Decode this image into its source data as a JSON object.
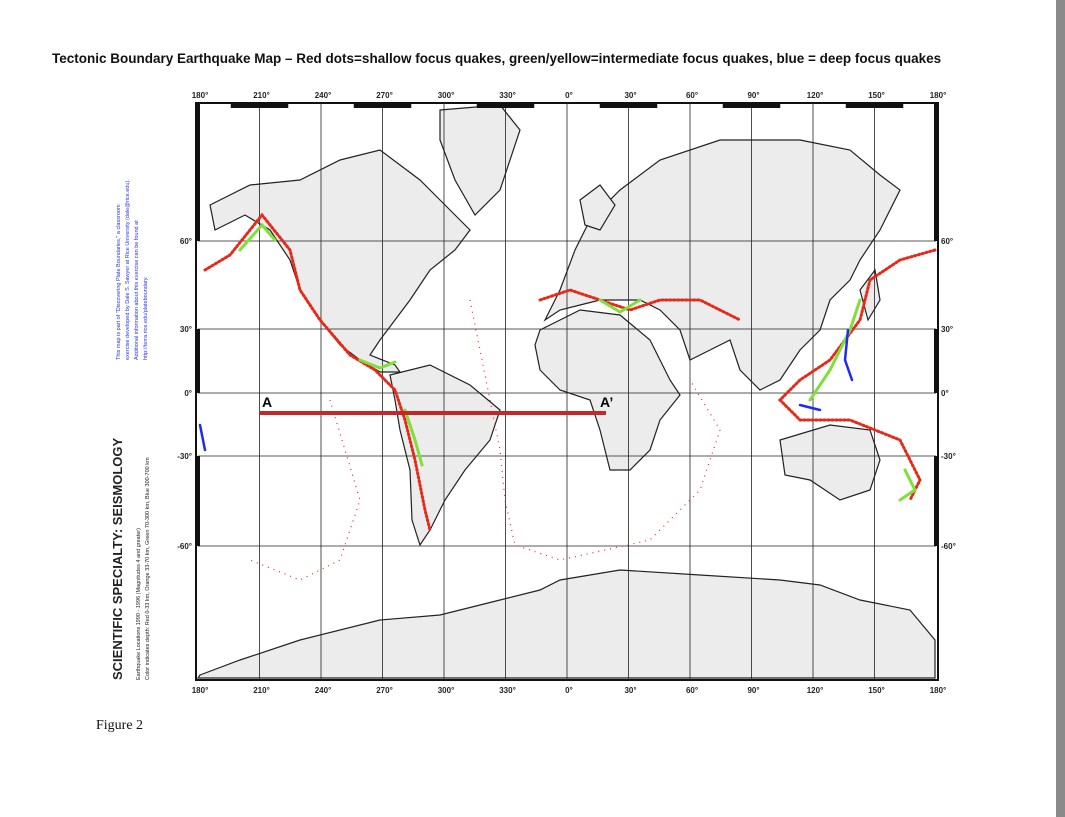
{
  "header": {
    "title": "Tectonic Boundary Earthquake Map – Red dots=shallow focus quakes, green/yellow=intermediate focus quakes, blue = deep focus quakes"
  },
  "map": {
    "longitude_labels": [
      "180°",
      "210°",
      "240°",
      "270°",
      "300°",
      "330°",
      "0°",
      "30°",
      "60°",
      "90°",
      "120°",
      "150°",
      "180°"
    ],
    "latitude_labels": [
      "60°",
      "30°",
      "0°",
      "-30°",
      "-60°"
    ],
    "section_start": "A",
    "section_end": "A’"
  },
  "sidebar": {
    "heading": "SCIENTIFIC SPECIALTY: SEISMOLOGY",
    "data_lines": [
      "Earthquake Locations 1990 - 1996 (Magnitudes 4 and greater)",
      "Color indicates depth: Red 0-33 km, Orange 33-70 km, Green 70-300 km, Blue 300-700 km"
    ],
    "credit_lines": [
      "This map is part of \"Discovering Plate Boundaries,\" a classroom",
      "exercise developed by Dale S. Sawyer at Rice University (dale@rice.edu).",
      "Additional information about this exercise can be found at",
      "http://terra.rice.edu/plateboundary."
    ]
  },
  "caption": "Figure 2"
}
